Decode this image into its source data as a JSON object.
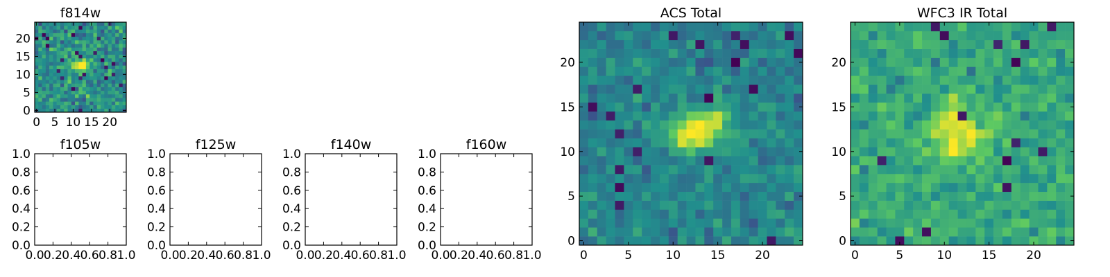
{
  "figure": {
    "background": "#ffffff",
    "colormap": [
      "#440154",
      "#3b528b",
      "#21908d",
      "#5dc962",
      "#fde725"
    ]
  },
  "chart_data": [
    {
      "id": "f814w",
      "type": "heatmap",
      "title": "f814w",
      "xlabel": "",
      "ylabel": "",
      "xlim": [
        -0.5,
        24.5
      ],
      "ylim": [
        -0.5,
        24.5
      ],
      "xticks": [
        0,
        5,
        10,
        15,
        20
      ],
      "yticks": [
        0,
        5,
        10,
        15,
        20
      ],
      "grid": false,
      "description": "25x25 pixel image cutout; bright compact source near x≈11-13, y≈11-13 on noisy background"
    },
    {
      "id": "f105w",
      "type": "heatmap",
      "title": "f105w",
      "empty": true,
      "xlim": [
        0.0,
        1.0
      ],
      "ylim": [
        0.0,
        1.0
      ],
      "xticks": [
        "0.0",
        "0.2",
        "0.4",
        "0.6",
        "0.8",
        "1.0"
      ],
      "yticks": [
        "0.0",
        "0.2",
        "0.4",
        "0.6",
        "0.8",
        "1.0"
      ]
    },
    {
      "id": "f125w",
      "type": "heatmap",
      "title": "f125w",
      "empty": true,
      "xlim": [
        0.0,
        1.0
      ],
      "ylim": [
        0.0,
        1.0
      ],
      "xticks": [
        "0.0",
        "0.2",
        "0.4",
        "0.6",
        "0.8",
        "1.0"
      ],
      "yticks": [
        "0.0",
        "0.2",
        "0.4",
        "0.6",
        "0.8",
        "1.0"
      ]
    },
    {
      "id": "f140w",
      "type": "heatmap",
      "title": "f140w",
      "empty": true,
      "xlim": [
        0.0,
        1.0
      ],
      "ylim": [
        0.0,
        1.0
      ],
      "xticks": [
        "0.0",
        "0.2",
        "0.4",
        "0.6",
        "0.8",
        "1.0"
      ],
      "yticks": [
        "0.0",
        "0.2",
        "0.4",
        "0.6",
        "0.8",
        "1.0"
      ]
    },
    {
      "id": "f160w",
      "type": "heatmap",
      "title": "f160w",
      "empty": true,
      "xlim": [
        0.0,
        1.0
      ],
      "ylim": [
        0.0,
        1.0
      ],
      "xticks": [
        "0.0",
        "0.2",
        "0.4",
        "0.6",
        "0.8",
        "1.0"
      ],
      "yticks": [
        "0.0",
        "0.2",
        "0.4",
        "0.6",
        "0.8",
        "1.0"
      ]
    },
    {
      "id": "acs_total",
      "type": "heatmap",
      "title": "ACS Total",
      "xlim": [
        -0.5,
        24.5
      ],
      "ylim": [
        -0.5,
        24.5
      ],
      "xticks": [
        0,
        5,
        10,
        15,
        20
      ],
      "yticks": [
        0,
        5,
        10,
        15,
        20
      ],
      "grid": false,
      "description": "25x25 stacked ACS image; bright elongated source around x≈10-15, y≈11-14"
    },
    {
      "id": "wfc3_ir_total",
      "type": "heatmap",
      "title": "WFC3 IR Total",
      "xlim": [
        -0.5,
        24.5
      ],
      "ylim": [
        -0.5,
        24.5
      ],
      "xticks": [
        0,
        5,
        10,
        15,
        20
      ],
      "yticks": [
        0,
        5,
        10,
        15,
        20
      ],
      "grid": false,
      "description": "25x25 stacked WFC3 IR image; brighter noisy background with source near x≈10-13, y≈10-14"
    }
  ]
}
